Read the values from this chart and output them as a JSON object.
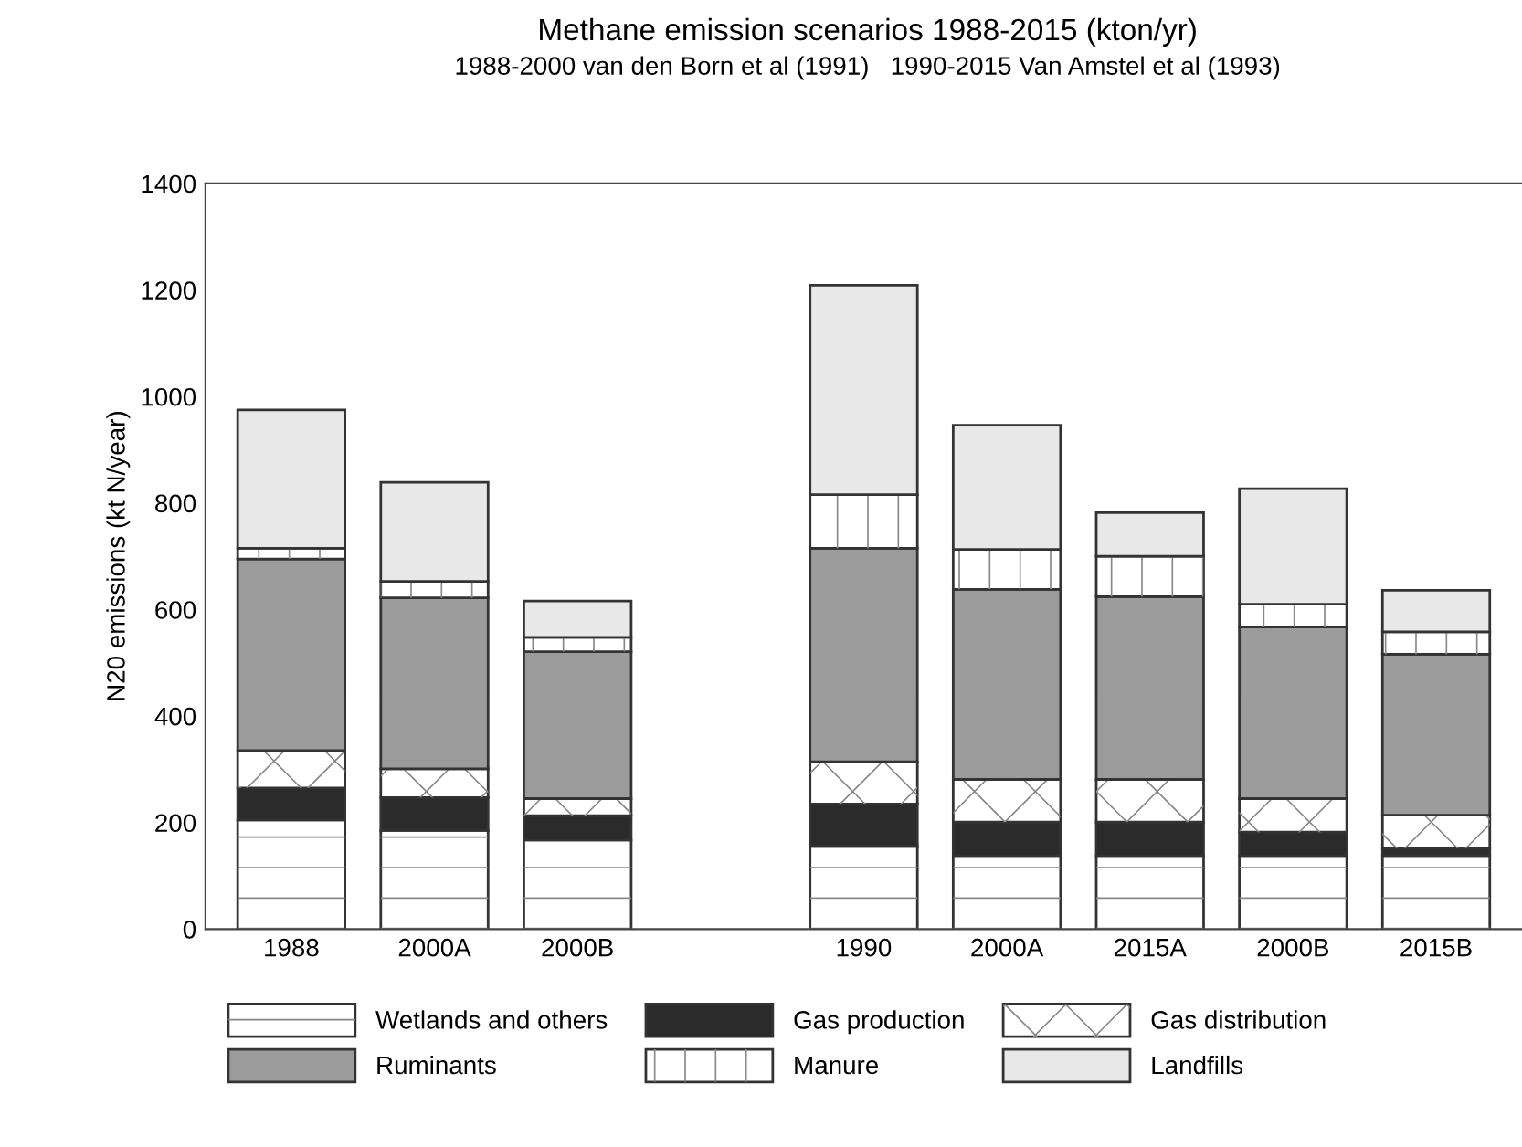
{
  "chart_data": {
    "type": "bar",
    "title": "Methane emission scenarios 1988-2015 (kton/yr)",
    "subtitle": "1988-2000 van den Born et al (1991)   1990-2015 Van Amstel et al (1993)",
    "ylabel": "N20 emissions (kt N/year)",
    "categories": [
      "1988",
      "2000A",
      "2000B",
      null,
      "1990",
      "2000A",
      "2015A",
      "2000B",
      "2015B"
    ],
    "stacked": true,
    "series": [
      {
        "name": "Wetlands and others",
        "color": "#ffffff",
        "values": [
          205,
          185,
          167,
          null,
          155,
          138,
          138,
          138,
          138
        ]
      },
      {
        "name": "Gas production",
        "color": "#2b2b2b",
        "values": [
          60,
          62,
          46,
          null,
          80,
          63,
          63,
          44,
          14
        ]
      },
      {
        "name": "Gas distribution",
        "color": "#ffffff",
        "values": [
          70,
          54,
          32,
          null,
          79,
          80,
          80,
          63,
          62
        ]
      },
      {
        "name": "Ruminants",
        "color": "#9b9b9b",
        "values": [
          360,
          321,
          276,
          null,
          401,
          357,
          343,
          322,
          302
        ]
      },
      {
        "name": "Manure",
        "color": "#ffffff",
        "values": [
          20,
          31,
          27,
          null,
          101,
          75,
          76,
          43,
          42
        ]
      },
      {
        "name": "Landfills",
        "color": "#e8e8e8",
        "values": [
          260,
          186,
          68,
          null,
          393,
          233,
          82,
          217,
          78
        ]
      }
    ],
    "ylim": [
      0,
      1400
    ],
    "yticks": [
      0,
      200,
      400,
      600,
      800,
      1000,
      1200,
      1400
    ],
    "legend": "bottom"
  }
}
